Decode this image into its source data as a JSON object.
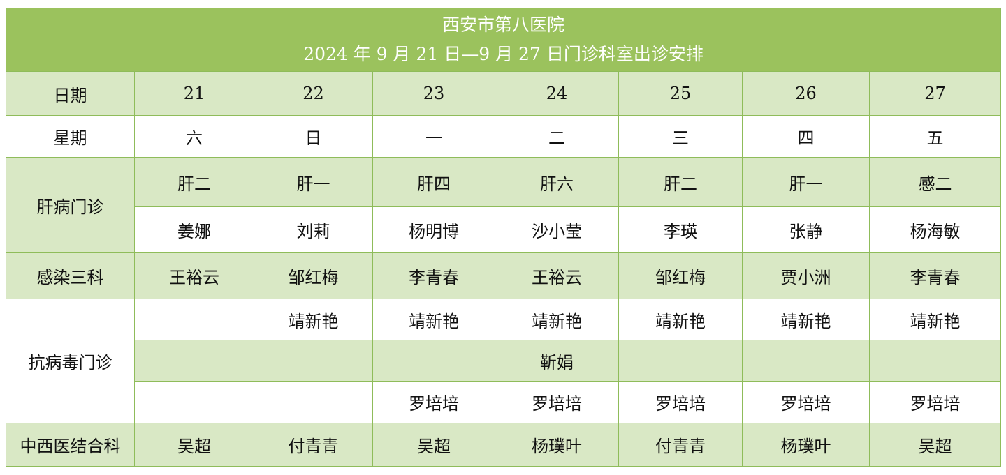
{
  "title": {
    "line1": "西安市第八医院",
    "line2": "2024 年 9 月 21 日—9 月 27 日门诊科室出诊安排"
  },
  "dates": {
    "label": "日期",
    "values": [
      "21",
      "22",
      "23",
      "24",
      "25",
      "26",
      "27"
    ]
  },
  "weekdays": {
    "label": "星期",
    "values": [
      "六",
      "日",
      "一",
      "二",
      "三",
      "四",
      "五"
    ]
  },
  "liver": {
    "label": "肝病门诊",
    "rooms": [
      "肝二",
      "肝一",
      "肝四",
      "肝六",
      "肝二",
      "肝一",
      "感二"
    ],
    "doctors": [
      "姜娜",
      "刘莉",
      "杨明博",
      "沙小莹",
      "李瑛",
      "张静",
      "杨海敏"
    ]
  },
  "infection3": {
    "label": "感染三科",
    "doctors": [
      "王裕云",
      "邹红梅",
      "李青春",
      "王裕云",
      "邹红梅",
      "贾小洲",
      "李青春"
    ]
  },
  "antiviral": {
    "label": "抗病毒门诊",
    "row1": [
      "",
      "靖新艳",
      "靖新艳",
      "靖新艳",
      "靖新艳",
      "靖新艳",
      "靖新艳"
    ],
    "row2": [
      "",
      "",
      "",
      "靳娟",
      "",
      "",
      ""
    ],
    "row3": [
      "",
      "",
      "罗培培",
      "罗培培",
      "罗培培",
      "罗培培",
      "罗培培"
    ]
  },
  "tcm": {
    "label": "中西医结合科",
    "doctors": [
      "吴超",
      "付青青",
      "吴超",
      "杨璞叶",
      "付青青",
      "杨璞叶",
      "吴超"
    ]
  }
}
